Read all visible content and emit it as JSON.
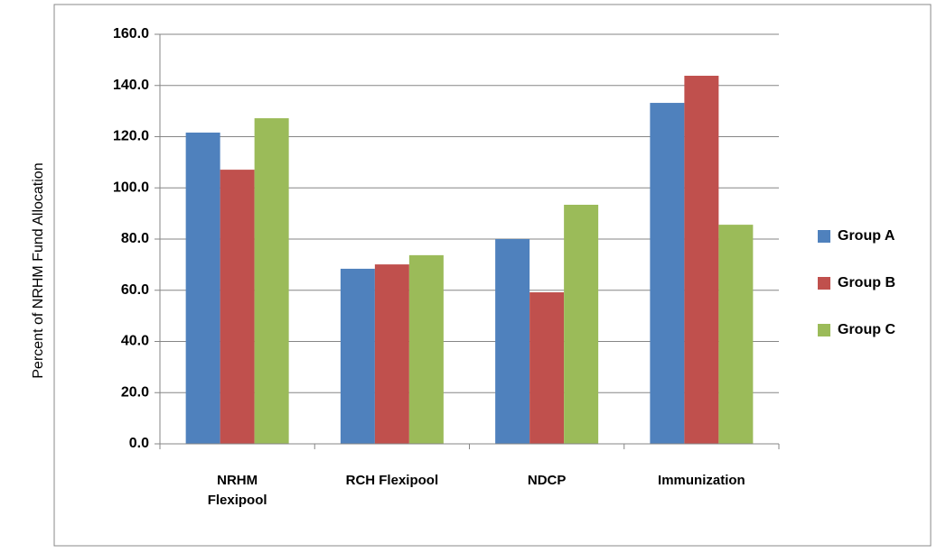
{
  "chart_data": {
    "type": "bar",
    "y_label": "Percent of NRHM Fund Allocation",
    "categories": [
      "NRHM Flexipool",
      "RCH Flexipool",
      "NDCP",
      "Immunization"
    ],
    "series": [
      {
        "name": "Group A",
        "color": "#4f81bd",
        "values": [
          121.6,
          68.4,
          80.0,
          133.2
        ]
      },
      {
        "name": "Group B",
        "color": "#c0504d",
        "values": [
          107.1,
          70.1,
          59.2,
          143.8
        ]
      },
      {
        "name": "Group C",
        "color": "#9bbb59",
        "values": [
          127.2,
          73.7,
          93.4,
          85.6
        ]
      }
    ],
    "ylim": [
      0,
      160
    ],
    "yticks": [
      {
        "value": 0,
        "label": "0.0"
      },
      {
        "value": 20,
        "label": "20.0"
      },
      {
        "value": 40,
        "label": "40.0"
      },
      {
        "value": 60,
        "label": "60.0"
      },
      {
        "value": 80,
        "label": "80.0"
      },
      {
        "value": 100,
        "label": "100.0"
      },
      {
        "value": 120,
        "label": "120.0"
      },
      {
        "value": 140,
        "label": "140.0"
      },
      {
        "value": 160,
        "label": "160.0"
      }
    ],
    "grid": true,
    "legend": "right"
  }
}
